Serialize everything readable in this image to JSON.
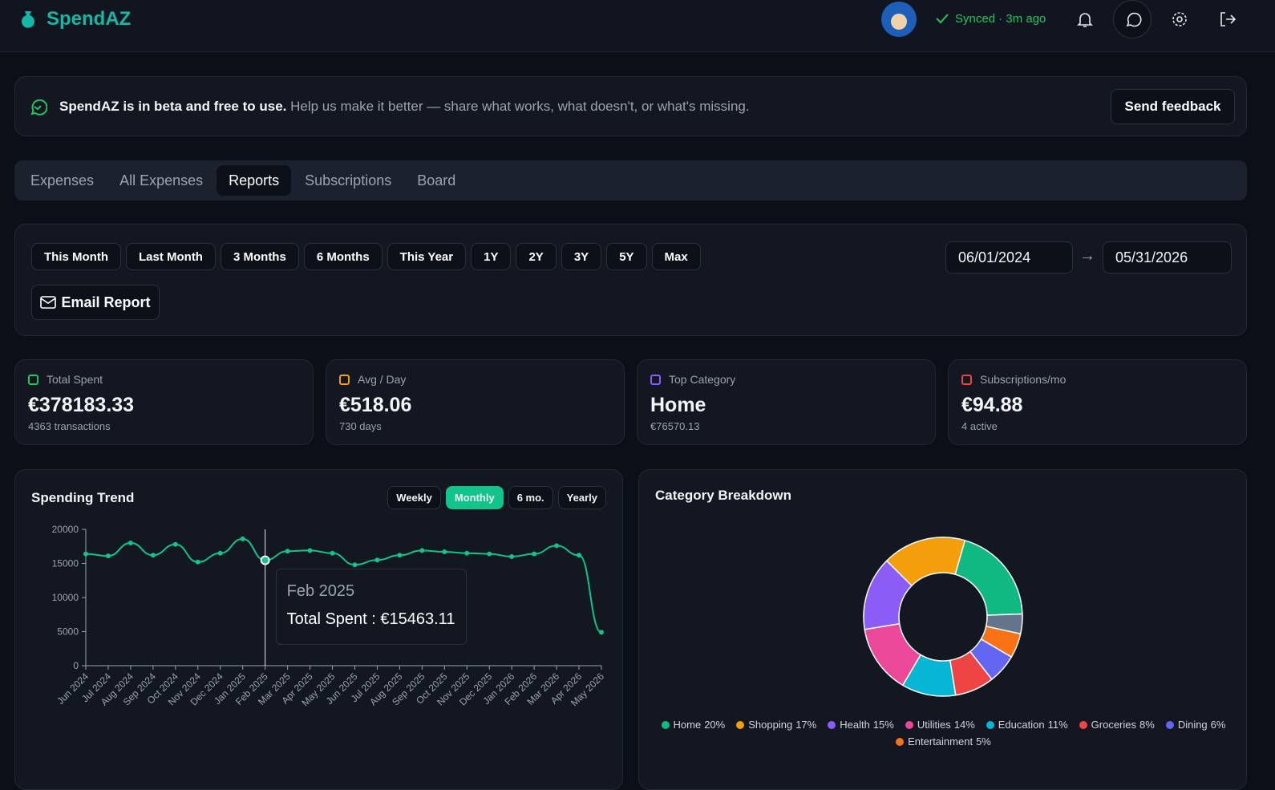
{
  "header": {
    "brand": "SpendAZ",
    "sync_status": "Synced · 3m ago"
  },
  "banner": {
    "headline": "SpendAZ is in beta and free to use.",
    "message": "Help us make it better — share what works, what doesn't, or what's missing.",
    "button": "Send feedback"
  },
  "tabs": {
    "items": [
      "Expenses",
      "All Expenses",
      "Reports",
      "Subscriptions",
      "Board"
    ],
    "active": 2
  },
  "filters": {
    "ranges": [
      "This Month",
      "Last Month",
      "3 Months",
      "6 Months",
      "This Year",
      "1Y",
      "2Y",
      "3Y",
      "5Y",
      "Max"
    ],
    "date_from": "06/01/2024",
    "date_separator": "→",
    "date_to": "05/31/2026",
    "email_button": "Email Report"
  },
  "stats": [
    {
      "label": "Total Spent",
      "value": "€378183.33",
      "detail": "4363 transactions",
      "color": "#22c55e"
    },
    {
      "label": "Avg / Day",
      "value": "€518.06",
      "detail": "730 days",
      "color": "#f59e0b"
    },
    {
      "label": "Top Category",
      "value": "Home",
      "detail": "€76570.13",
      "color": "#8b5cf6"
    },
    {
      "label": "Subscriptions/mo",
      "value": "€94.88",
      "detail": "4 active",
      "color": "#ef4444"
    }
  ],
  "chart_data": [
    {
      "type": "line",
      "title": "Spending Trend",
      "views": [
        "Weekly",
        "Monthly",
        "6 mo.",
        "Yearly"
      ],
      "active_view": 1,
      "categories": [
        "Jun 2024",
        "Jul 2024",
        "Aug 2024",
        "Sep 2024",
        "Oct 2024",
        "Nov 2024",
        "Dec 2024",
        "Jan 2025",
        "Feb 2025",
        "Mar 2025",
        "Apr 2025",
        "May 2025",
        "Jun 2025",
        "Jul 2025",
        "Aug 2025",
        "Sep 2025",
        "Oct 2025",
        "Nov 2025",
        "Dec 2025",
        "Jan 2026",
        "Feb 2026",
        "Mar 2026",
        "Apr 2026",
        "May 2026"
      ],
      "values": [
        16400,
        16100,
        18000,
        16200,
        17800,
        15200,
        16500,
        18600,
        15463.11,
        16800,
        16900,
        16500,
        14800,
        15500,
        16200,
        16900,
        16700,
        16500,
        16400,
        16000,
        16400,
        17600,
        16200,
        4900
      ],
      "color": "#10c48a",
      "ylim": [
        0,
        20000
      ],
      "yticks": [
        0,
        5000,
        10000,
        15000,
        20000
      ],
      "tooltip": {
        "index": 8,
        "title": "Feb 2025",
        "text": "Total Spent : €15463.11"
      }
    },
    {
      "type": "pie",
      "title": "Category Breakdown",
      "categories": [
        "Home",
        "Shopping",
        "Health",
        "Utilities",
        "Education",
        "Groceries",
        "Dining",
        "Entertainment",
        null
      ],
      "values": [
        20,
        17,
        15,
        14,
        11,
        8,
        6,
        5,
        4
      ],
      "value_labels": [
        "20%",
        "17%",
        "15%",
        "14%",
        "11%",
        "8%",
        "6%",
        "5%",
        null
      ],
      "colors": [
        "#10b981",
        "#f59e0b",
        "#8b5cf6",
        "#ec4899",
        "#06b6d4",
        "#ef4444",
        "#6366f1",
        "#f97316",
        "#64748b"
      ]
    }
  ]
}
